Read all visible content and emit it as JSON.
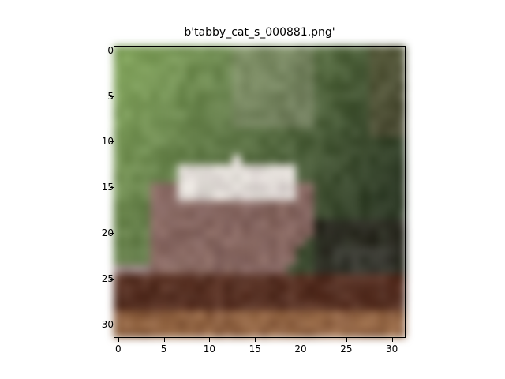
{
  "title": "b'tabby_cat_s_000881.png'",
  "axes": {
    "x_ticks": [
      "0",
      "5",
      "10",
      "15",
      "20",
      "25",
      "30"
    ],
    "y_ticks": [
      "0",
      "5",
      "10",
      "15",
      "20",
      "25",
      "30"
    ]
  },
  "image": {
    "resolution": "32x32",
    "colors": {
      "grass_light": "#86a860",
      "grass_mid": "#5c7a44",
      "foliage_dark": "#2e3a26",
      "cat_white": "#e6e2dc",
      "cat_brown": "#8a6a62",
      "ground_brown": "#5a3224",
      "ground_light": "#9c6e4a"
    }
  }
}
